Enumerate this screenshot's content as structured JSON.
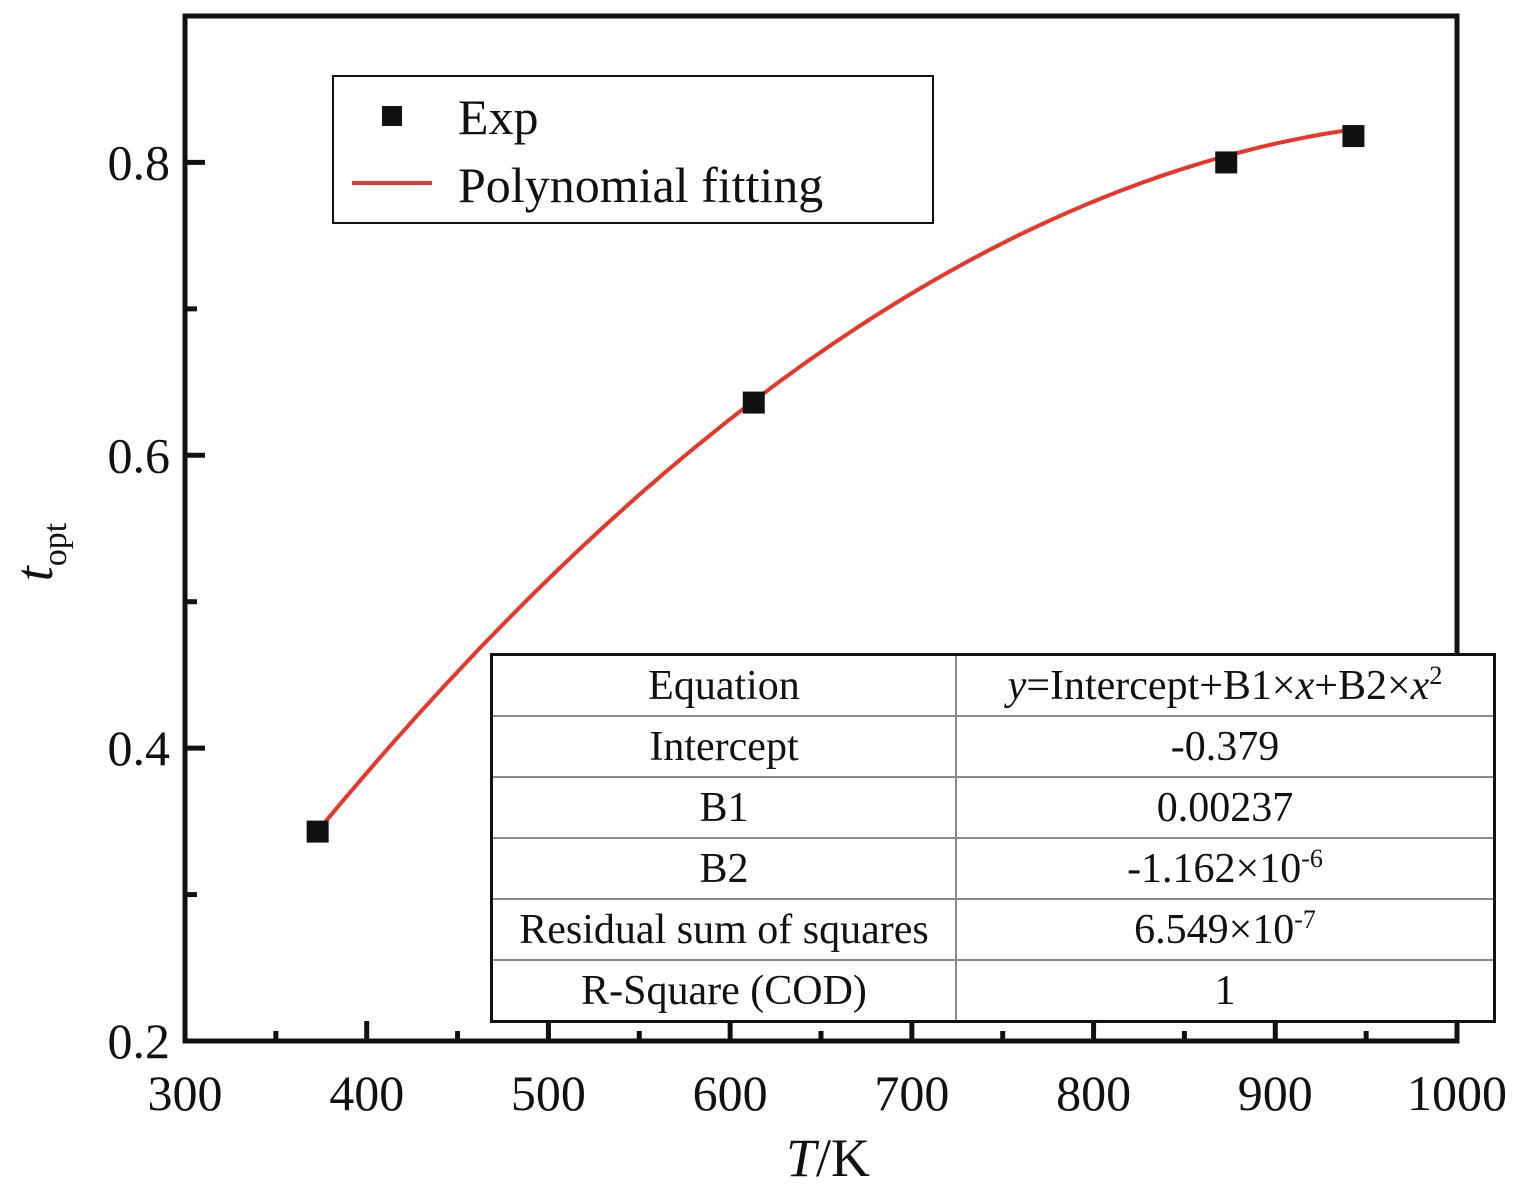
{
  "chart_data": {
    "type": "scatter",
    "title": "",
    "xlabel": "T/K",
    "xlabel_var": "T",
    "xlabel_unit": "/K",
    "ylabel_var": "t",
    "ylabel_sub": "opt",
    "xlim": [
      300,
      1000
    ],
    "ylim": [
      0.2,
      0.9
    ],
    "x_ticks": [
      300,
      400,
      500,
      600,
      700,
      800,
      900,
      1000
    ],
    "x_tick_labels": [
      "300",
      "400",
      "500",
      "600",
      "700",
      "800",
      "900",
      "1000"
    ],
    "y_ticks": [
      0.2,
      0.4,
      0.6,
      0.8
    ],
    "y_tick_labels": [
      "0.2",
      "0.4",
      "0.6",
      "0.8"
    ],
    "legend_position": "top-left",
    "series": [
      {
        "name": "Exp",
        "kind": "scatter",
        "marker": "square",
        "color": "#111111",
        "x": [
          373,
          613,
          873,
          943
        ],
        "y": [
          0.343,
          0.636,
          0.8,
          0.818
        ]
      },
      {
        "name": "Polynomial fitting",
        "kind": "line",
        "color": "#e8362a",
        "x_range": [
          373,
          943
        ],
        "coefficients": {
          "intercept": -0.379,
          "b1": 0.00237,
          "b2": -1.162e-06
        }
      }
    ]
  },
  "fit_table": {
    "rows": [
      {
        "key": "Equation",
        "value_parts": [
          "y",
          "=Intercept+B1×",
          "x",
          "+B2×",
          "x",
          "2"
        ]
      },
      {
        "key": "Intercept",
        "value": "-0.379"
      },
      {
        "key": "B1",
        "value": "0.00237"
      },
      {
        "key": "B2",
        "value_base": "-1.162×10",
        "value_exp": "-6"
      },
      {
        "key": "Residual sum of squares",
        "value_base": "6.549×10",
        "value_exp": "-7"
      },
      {
        "key": "R-Square (COD)",
        "value": "1"
      }
    ]
  }
}
